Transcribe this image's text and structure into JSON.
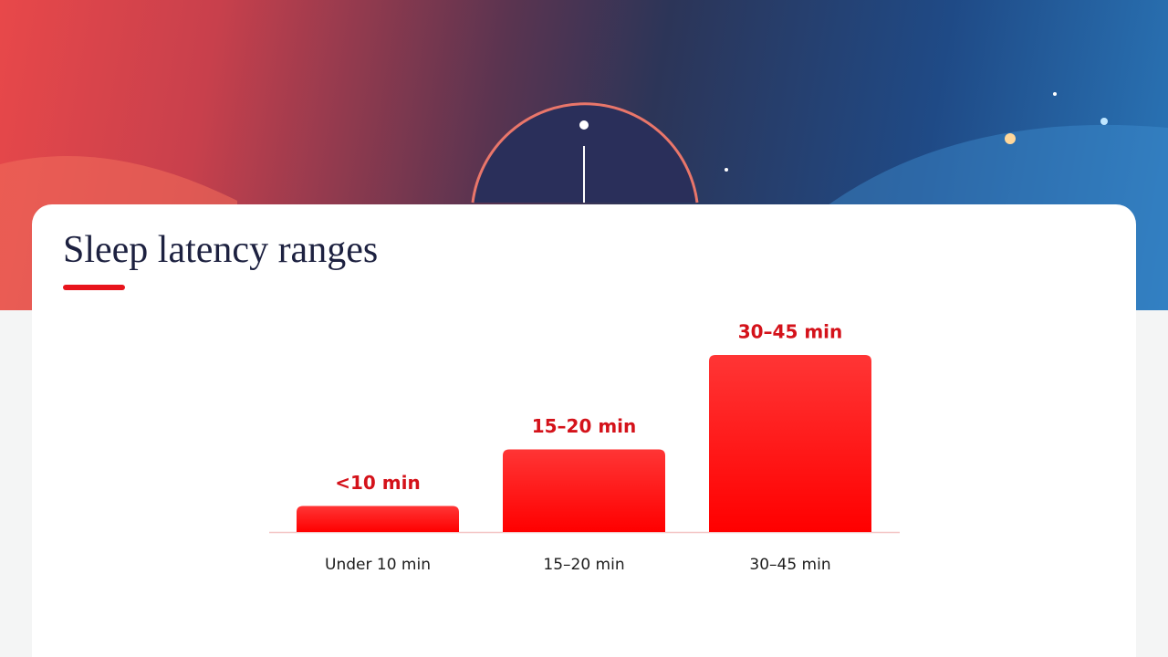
{
  "chart_data": {
    "type": "bar",
    "title": "Sleep latency ranges",
    "categories": [
      "Under 10 min",
      "15–20 min",
      "30–45 min"
    ],
    "values": [
      5.5,
      17.5,
      37.5
    ],
    "value_labels": [
      "<10 min",
      "15–20 min",
      "30–45 min"
    ],
    "color": "#ff1a1a",
    "ylim": [
      0,
      40
    ]
  }
}
